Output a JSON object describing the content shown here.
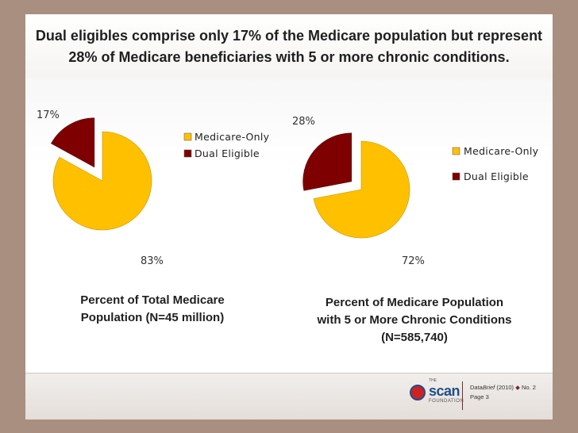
{
  "title": {
    "line1": "Dual eligibles comprise only 17% of the Medicare population but represent",
    "line2": "28% of Medicare beneficiaries with 5 or more chronic conditions."
  },
  "colors": {
    "medicare_only": "#ffc000",
    "dual_eligible": "#7f0000"
  },
  "chart_data": [
    {
      "type": "pie",
      "categories": [
        "Medicare-Only",
        "Dual Eligible"
      ],
      "values": [
        83,
        17
      ],
      "labels": [
        "83%",
        "17%"
      ],
      "exploded": "Dual Eligible",
      "legend": [
        "Medicare-Only",
        "Dual Eligible"
      ],
      "caption_line1": "Percent of Total Medicare",
      "caption_line2": "Population (N=45 million)"
    },
    {
      "type": "pie",
      "categories": [
        "Medicare-Only",
        "Dual Eligible"
      ],
      "values": [
        72,
        28
      ],
      "labels": [
        "72%",
        "28%"
      ],
      "exploded": "Dual Eligible",
      "legend": [
        "Medicare-Only",
        "Dual Eligible"
      ],
      "caption_line1": "Percent of Medicare Population",
      "caption_line2": "with 5 or More Chronic Conditions",
      "caption_line3": "(N=585,740)"
    }
  ],
  "footer": {
    "logo_the": "THE",
    "logo_name": "scan",
    "logo_sub": "FOUNDATION",
    "brief_prefix": "Data",
    "brief_italic": "Brief",
    "brief_rest": "(2010)",
    "issue": "No. 2",
    "page": "Page 3"
  }
}
